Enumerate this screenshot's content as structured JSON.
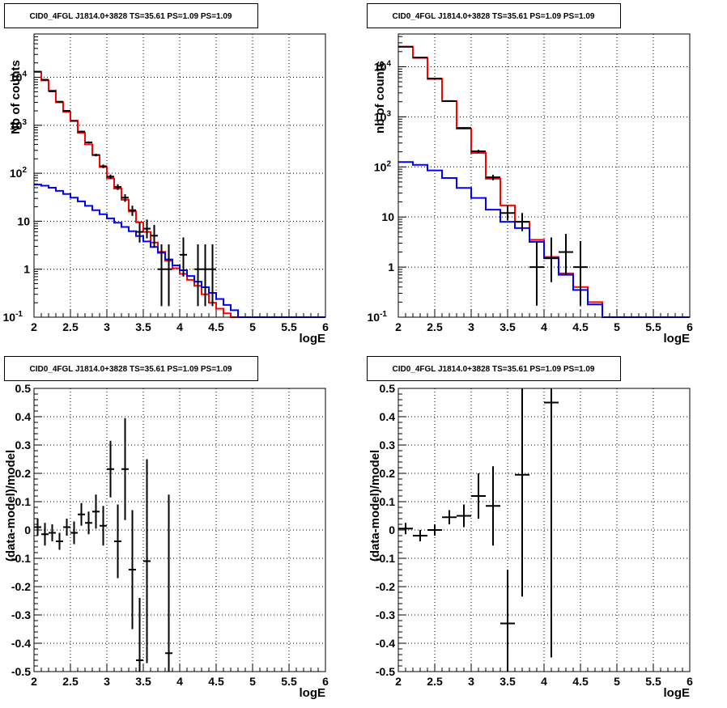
{
  "chart_data": [
    {
      "type": "line",
      "title": "CID0_4FGL J1814.0+3828 TS=35.61 PS=1.09 PS=1.09",
      "xlabel": "logE",
      "ylabel": "Nb of counts",
      "xlim": [
        2,
        6
      ],
      "ylim": [
        0.1,
        80000
      ],
      "ylog": true,
      "grid": true,
      "xticks": [
        "2",
        "2.5",
        "3",
        "3.5",
        "4",
        "4.5",
        "5",
        "5.5",
        "6"
      ],
      "yticks": [
        "10^-1",
        "1",
        "10",
        "10^2",
        "10^3",
        "10^4"
      ],
      "bin_edges": [
        2.0,
        2.1,
        2.2,
        2.3,
        2.4,
        2.5,
        2.6,
        2.7,
        2.8,
        2.9,
        3.0,
        3.1,
        3.2,
        3.3,
        3.4,
        3.5,
        3.6,
        3.7,
        3.8,
        3.9,
        4.0,
        4.1,
        4.2,
        4.3,
        4.4,
        4.5,
        4.6,
        4.7,
        4.8,
        4.9,
        5.0,
        5.1,
        5.2,
        5.3,
        5.4,
        5.5,
        5.6,
        5.7,
        5.8,
        5.9,
        6.0
      ],
      "series": [
        {
          "color": "#ff0000",
          "kind": "step",
          "values": [
            13000,
            8600,
            5300,
            3000,
            1900,
            1250,
            700,
            400,
            240,
            135,
            78,
            48,
            28,
            16,
            9.5,
            6.0,
            3.6,
            2.3,
            1.5,
            1.05,
            0.8,
            0.6,
            0.45,
            0.3,
            0.2,
            0.15,
            0.12,
            0.1,
            0.1,
            0.1,
            0.1,
            0.1,
            0.1,
            0.1,
            0.1,
            0.1,
            0.1,
            0.1,
            0.1,
            0.1
          ]
        },
        {
          "color": "#0000ff",
          "kind": "step",
          "values": [
            58,
            55,
            50,
            43,
            37,
            31,
            26,
            21,
            17,
            14,
            11.5,
            9.3,
            7.6,
            6.2,
            4.9,
            3.8,
            2.9,
            2.2,
            1.6,
            1.2,
            0.95,
            0.72,
            0.55,
            0.42,
            0.32,
            0.24,
            0.18,
            0.14,
            0.1,
            0.1,
            0.1,
            0.1,
            0.1,
            0.1,
            0.1,
            0.1,
            0.1,
            0.1,
            0.1,
            0.1
          ]
        },
        {
          "color": "#000000",
          "kind": "points",
          "x": [
            2.05,
            2.15,
            2.25,
            2.35,
            2.45,
            2.55,
            2.65,
            2.75,
            2.85,
            2.95,
            3.05,
            3.15,
            3.25,
            3.35,
            3.45,
            3.55,
            3.65,
            3.75,
            3.85,
            4.05,
            4.25,
            4.35,
            4.45
          ],
          "y": [
            13100,
            8900,
            5100,
            3100,
            2000,
            1230,
            740,
            440,
            240,
            140,
            85,
            52,
            31,
            17,
            6,
            7,
            5,
            1,
            1,
            2,
            1,
            1,
            1
          ],
          "err_lo": [
            115,
            94,
            71,
            56,
            45,
            35,
            27,
            21,
            15.5,
            12,
            9.2,
            7.2,
            5.6,
            4.1,
            2.4,
            2.6,
            2.2,
            0.83,
            0.83,
            1.3,
            0.83,
            0.83,
            0.83
          ],
          "err_hi": [
            115,
            94,
            71,
            56,
            45,
            35,
            27,
            21,
            15.5,
            12,
            9.2,
            7.2,
            5.6,
            4.1,
            3.5,
            3.8,
            3.4,
            2.3,
            2.3,
            2.6,
            2.3,
            2.3,
            2.3
          ]
        }
      ]
    },
    {
      "type": "line",
      "title": "CID0_4FGL J1814.0+3828 TS=35.61 PS=1.09 PS=1.09",
      "xlabel": "logE",
      "ylabel": "nb of counts",
      "xlim": [
        2,
        6
      ],
      "ylim": [
        0.1,
        45000
      ],
      "ylog": true,
      "grid": true,
      "xticks": [
        "2",
        "2.5",
        "3",
        "3.5",
        "4",
        "4.5",
        "5",
        "5.5",
        "6"
      ],
      "yticks": [
        "10^-1",
        "1",
        "10",
        "10^2",
        "10^3",
        "10^4"
      ],
      "bin_edges": [
        2.0,
        2.2,
        2.4,
        2.6,
        2.8,
        3.0,
        3.2,
        3.4,
        3.6,
        3.8,
        4.0,
        4.2,
        4.4,
        4.6,
        4.8,
        5.0,
        5.2,
        5.4,
        5.6,
        5.8,
        6.0
      ],
      "series": [
        {
          "color": "#ff0000",
          "kind": "step",
          "values": [
            25000,
            15000,
            5700,
            2050,
            580,
            190,
            58,
            17,
            8.0,
            3.5,
            1.6,
            0.75,
            0.4,
            0.2,
            0.1,
            0.1,
            0.1,
            0.1,
            0.1,
            0.1
          ]
        },
        {
          "color": "#0000ff",
          "kind": "step",
          "values": [
            125,
            110,
            85,
            60,
            38,
            24,
            14,
            8.0,
            6.0,
            3.2,
            1.5,
            0.7,
            0.35,
            0.18,
            0.1,
            0.1,
            0.1,
            0.1,
            0.1,
            0.1
          ]
        },
        {
          "color": "#000000",
          "kind": "points",
          "x": [
            2.1,
            2.3,
            2.5,
            2.7,
            2.9,
            3.1,
            3.3,
            3.5,
            3.7,
            3.9,
            4.1,
            4.3,
            4.5
          ],
          "y": [
            25100,
            15200,
            5800,
            2060,
            600,
            205,
            62,
            12,
            8,
            1,
            1.5,
            2,
            1
          ],
          "err_lo": [
            158,
            123,
            76,
            45,
            24.5,
            14.3,
            7.9,
            3.5,
            2.8,
            0.83,
            1.0,
            1.3,
            0.83
          ],
          "err_hi": [
            158,
            123,
            76,
            45,
            24.5,
            14.3,
            7.9,
            4.7,
            4.0,
            2.3,
            2.4,
            2.6,
            2.3
          ]
        }
      ]
    },
    {
      "type": "scatter",
      "title": "CID0_4FGL J1814.0+3828 TS=35.61 PS=1.09 PS=1.09",
      "xlabel": "logE",
      "ylabel": "(data-model)/model",
      "xlim": [
        2,
        6
      ],
      "ylim": [
        -0.5,
        0.5
      ],
      "grid": true,
      "xticks": [
        "2",
        "2.5",
        "3",
        "3.5",
        "4",
        "4.5",
        "5",
        "5.5",
        "6"
      ],
      "yticks": [
        "-0.5",
        "-0.4",
        "-0.3",
        "-0.2",
        "-0.1",
        "0",
        "0.1",
        "0.2",
        "0.3",
        "0.4",
        "0.5"
      ],
      "points": {
        "x": [
          2.05,
          2.15,
          2.25,
          2.35,
          2.45,
          2.55,
          2.65,
          2.75,
          2.85,
          2.95,
          3.05,
          3.15,
          3.25,
          3.35,
          3.45,
          3.55,
          3.85
        ],
        "xerr": 0.05,
        "y": [
          0.01,
          -0.015,
          -0.01,
          -0.04,
          0.01,
          -0.01,
          0.055,
          0.025,
          0.065,
          0.015,
          0.215,
          -0.04,
          0.215,
          -0.14,
          -0.46,
          -0.11,
          -0.435
        ],
        "err": [
          0.03,
          0.04,
          0.03,
          0.03,
          0.03,
          0.04,
          0.04,
          0.04,
          0.06,
          0.07,
          0.1,
          0.13,
          0.18,
          0.21,
          0.22,
          0.36,
          0.56
        ]
      }
    },
    {
      "type": "scatter",
      "title": "CID0_4FGL J1814.0+3828 TS=35.61 PS=1.09 PS=1.09",
      "xlabel": "logE",
      "ylabel": "(data-model)/model",
      "xlim": [
        2,
        6
      ],
      "ylim": [
        -0.5,
        0.5
      ],
      "grid": true,
      "xticks": [
        "2",
        "2.5",
        "3",
        "3.5",
        "4",
        "4.5",
        "5",
        "5.5",
        "6"
      ],
      "yticks": [
        "-0.5",
        "-0.4",
        "-0.3",
        "-0.2",
        "-0.1",
        "0",
        "0.1",
        "0.2",
        "0.3",
        "0.4",
        "0.5"
      ],
      "points": {
        "x": [
          2.1,
          2.3,
          2.5,
          2.7,
          2.9,
          3.1,
          3.3,
          3.5,
          3.7,
          4.1
        ],
        "xerr": 0.1,
        "y": [
          0.005,
          -0.02,
          0.0,
          0.045,
          0.05,
          0.12,
          0.085,
          -0.33,
          0.195,
          0.45
        ],
        "err": [
          0.02,
          0.02,
          0.02,
          0.025,
          0.04,
          0.08,
          0.14,
          0.19,
          0.43,
          0.9
        ]
      }
    }
  ]
}
